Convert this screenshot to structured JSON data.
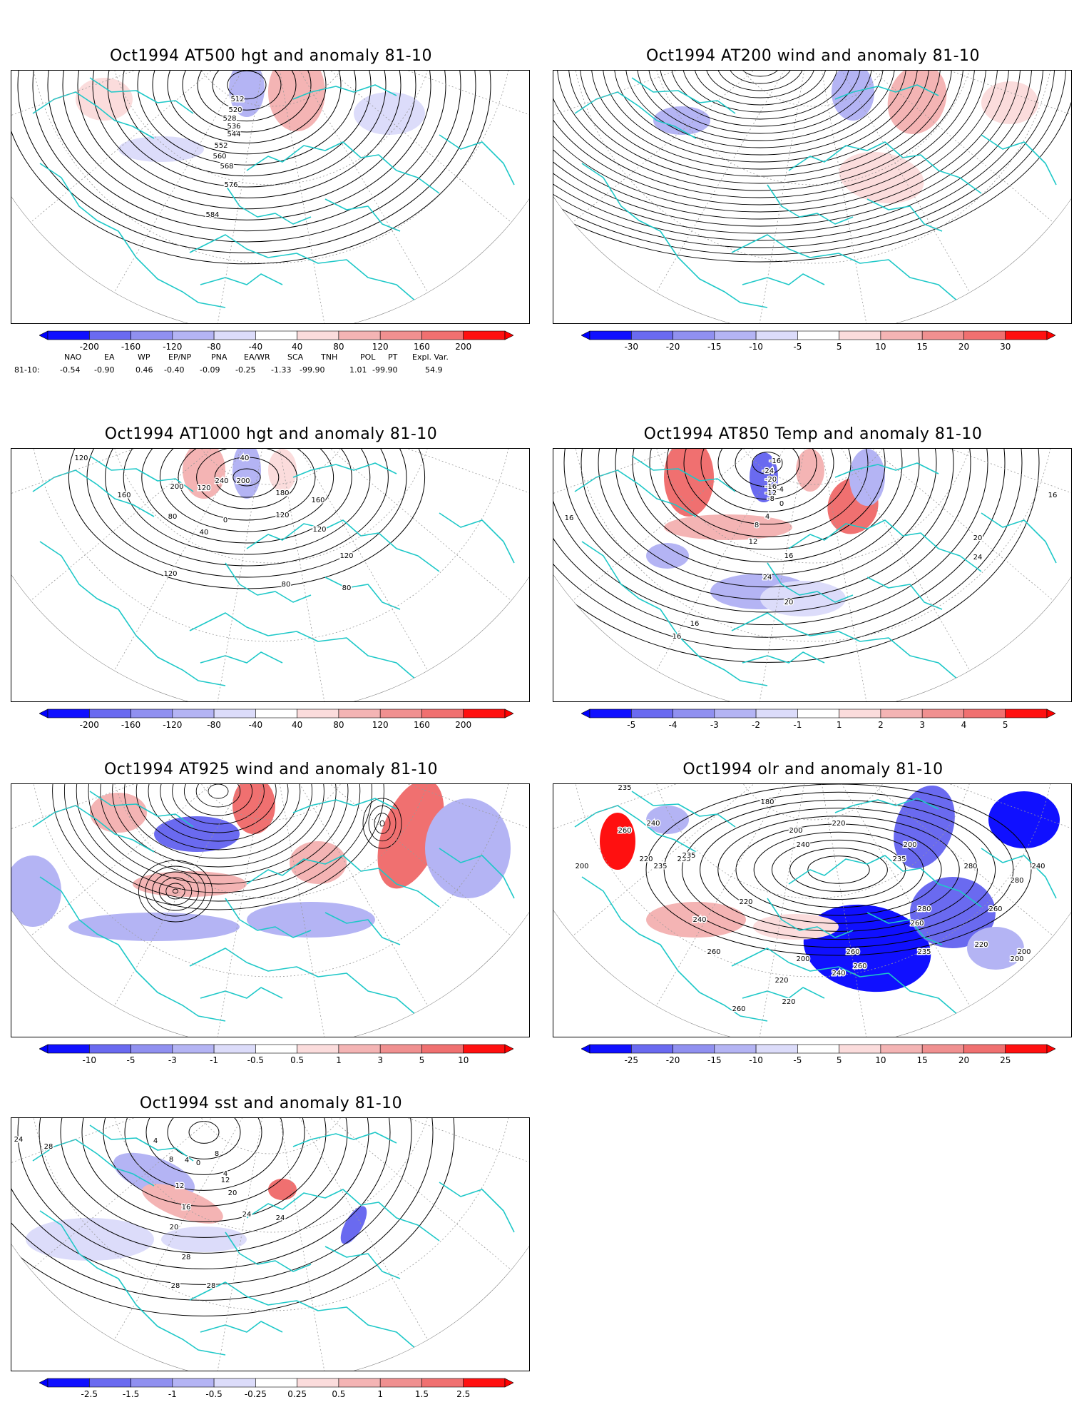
{
  "panels": [
    {
      "id": "p1",
      "title": "Oct1994 AT500 hgt and anomaly 81-10",
      "contour_labels": [
        "512",
        "520",
        "528",
        "536",
        "544",
        "552",
        "560",
        "568",
        "576",
        "584"
      ],
      "colorbar": {
        "labels": [
          "-200",
          "-160",
          "-120",
          "-80",
          "-40",
          "40",
          "80",
          "120",
          "160",
          "200"
        ]
      }
    },
    {
      "id": "p2",
      "title": "Oct1994 AT200 wind and anomaly 81-10",
      "contour_labels": [],
      "colorbar": {
        "labels": [
          "-30",
          "-20",
          "-15",
          "-10",
          "-5",
          "5",
          "10",
          "15",
          "20",
          "30"
        ]
      }
    },
    {
      "id": "p3",
      "title": "Oct1994 AT1000 hgt and anomaly 81-10",
      "contour_labels": [
        "120",
        "160",
        "200",
        "240",
        "80",
        "120",
        "40",
        "0",
        "40",
        "200",
        "180",
        "120",
        "120",
        "160",
        "120",
        "80",
        "120",
        "80"
      ],
      "colorbar": {
        "labels": [
          "-200",
          "-160",
          "-120",
          "-80",
          "-40",
          "40",
          "80",
          "120",
          "160",
          "200"
        ]
      }
    },
    {
      "id": "p4",
      "title": "Oct1994 AT850 Temp and anomaly 81-10",
      "contour_labels": [
        "-16",
        "-24",
        "-20",
        "-16",
        "-12",
        "-8",
        "-4",
        "0",
        "4",
        "8",
        "12",
        "16",
        "20",
        "24",
        "24",
        "20",
        "16",
        "16",
        "16",
        "16"
      ],
      "colorbar": {
        "labels": [
          "-5",
          "-4",
          "-3",
          "-2",
          "-1",
          "1",
          "2",
          "3",
          "4",
          "5"
        ]
      }
    },
    {
      "id": "p5",
      "title": "Oct1994 AT925 wind and anomaly 81-10",
      "contour_labels": [],
      "colorbar": {
        "labels": [
          "-10",
          "-5",
          "-3",
          "-1",
          "-0.5",
          "0.5",
          "1",
          "3",
          "5",
          "10"
        ]
      }
    },
    {
      "id": "p6",
      "title": "Oct1994 olr and anomaly 81-10",
      "contour_labels": [
        "235",
        "260",
        "240",
        "220",
        "200",
        "235",
        "235",
        "235",
        "220",
        "240",
        "260",
        "180",
        "200",
        "240",
        "220",
        "200",
        "235",
        "260",
        "280",
        "280",
        "240",
        "260",
        "280",
        "200",
        "220",
        "180",
        "200",
        "220",
        "235",
        "260",
        "260",
        "240",
        "200",
        "220",
        "220",
        "260"
      ],
      "colorbar": {
        "labels": [
          "-25",
          "-20",
          "-15",
          "-10",
          "-5",
          "5",
          "10",
          "15",
          "20",
          "25"
        ]
      }
    },
    {
      "id": "p7",
      "title": "Oct1994 sst and anomaly 81-10",
      "contour_labels": [
        "24",
        "28",
        "4",
        "8",
        "4",
        "0",
        "4",
        "8",
        "12",
        "16",
        "20",
        "12",
        "20",
        "24",
        "24",
        "28",
        "28",
        "28"
      ],
      "colorbar": {
        "labels": [
          "-2.5",
          "-1.5",
          "-1",
          "-0.5",
          "-0.25",
          "0.25",
          "0.5",
          "1",
          "1.5",
          "2.5"
        ]
      }
    }
  ],
  "teleconnection_indices": {
    "row_label": "81-10:",
    "headers": [
      "NAO",
      "EA",
      "WP",
      "EP/NP",
      "PNA",
      "EA/WR",
      "SCA",
      "TNH",
      "POL",
      "PT",
      "Expl. Var."
    ],
    "values": [
      "-0.54",
      "-0.90",
      "0.46",
      "-0.40",
      "-0.09",
      "-0.25",
      "-1.33",
      "-99.90",
      "1.01",
      "-99.90",
      "54.9"
    ]
  },
  "colors": {
    "coast": "#1ec8c8",
    "neg_strong": "#1010ff",
    "neg_mid": "#6a6af0",
    "neg_light": "#b4b4f4",
    "neg_faint": "#dcdcfa",
    "pos_faint": "#fbdcdc",
    "pos_light": "#f4b4b4",
    "pos_mid": "#f07070",
    "pos_strong": "#ff1010",
    "contour": "#000000",
    "grid": "#999999"
  }
}
